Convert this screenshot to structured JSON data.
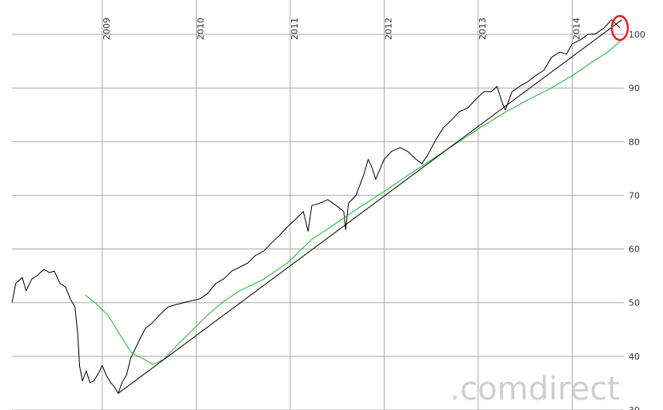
{
  "chart_data": {
    "type": "line",
    "xlim": [
      2008.04,
      2014.55
    ],
    "ylim": [
      30,
      106.4
    ],
    "xticks": [
      2009,
      2010,
      2011,
      2012,
      2013,
      2014
    ],
    "yticks": [
      30,
      40,
      50,
      60,
      70,
      80,
      90,
      100
    ],
    "grid": true,
    "watermark": ".comdirect",
    "series": [
      {
        "color": "#000000",
        "x": [
          2008.04,
          2008.08,
          2008.15,
          2008.19,
          2008.25,
          2008.31,
          2008.38,
          2008.44,
          2008.49,
          2008.55,
          2008.61,
          2008.66,
          2008.71,
          2008.74,
          2008.76,
          2008.79,
          2008.83,
          2008.87,
          2008.91,
          2008.96,
          2009.0,
          2009.04,
          2009.09,
          2009.13,
          2009.17,
          2009.21,
          2009.26,
          2009.3,
          2009.34,
          2009.4,
          2009.46,
          2009.53,
          2009.61,
          2009.7,
          2009.78,
          2009.91,
          2010.04,
          2010.12,
          2010.21,
          2010.29,
          2010.38,
          2010.46,
          2010.55,
          2010.63,
          2010.72,
          2010.8,
          2010.89,
          2010.97,
          2011.06,
          2011.14,
          2011.19,
          2011.23,
          2011.31,
          2011.4,
          2011.49,
          2011.57,
          2011.59,
          2011.62,
          2011.7,
          2011.78,
          2011.83,
          2011.87,
          2011.91,
          2012.0,
          2012.08,
          2012.17,
          2012.25,
          2012.34,
          2012.4,
          2012.46,
          2012.55,
          2012.63,
          2012.72,
          2012.8,
          2012.89,
          2012.97,
          2013.06,
          2013.14,
          2013.2,
          2013.26,
          2013.29,
          2013.36,
          2013.44,
          2013.53,
          2013.61,
          2013.7,
          2013.78,
          2013.87,
          2013.94,
          2014.0,
          2014.09,
          2014.17,
          2014.25,
          2014.34,
          2014.42,
          2014.51
        ],
        "values": [
          50.0,
          53.6,
          54.7,
          52.2,
          54.4,
          55.1,
          56.2,
          55.6,
          55.9,
          53.6,
          52.9,
          50.7,
          49.2,
          44.0,
          38.1,
          35.4,
          37.3,
          35.1,
          35.4,
          36.8,
          38.3,
          36.6,
          35.1,
          34.3,
          33.1,
          35.1,
          36.6,
          39.5,
          41.0,
          43.2,
          45.2,
          46.2,
          47.7,
          49.2,
          49.6,
          50.2,
          50.7,
          51.7,
          53.6,
          54.4,
          55.9,
          56.6,
          57.4,
          58.8,
          59.6,
          61.1,
          62.6,
          64.1,
          65.6,
          67.0,
          63.3,
          68.1,
          68.5,
          69.2,
          68.1,
          67.0,
          63.6,
          68.5,
          70.0,
          73.7,
          76.7,
          75.2,
          73.0,
          76.7,
          78.2,
          78.9,
          78.2,
          76.7,
          75.9,
          77.4,
          80.4,
          82.6,
          84.1,
          85.6,
          86.3,
          87.8,
          89.3,
          89.3,
          90.3,
          87.1,
          85.9,
          89.3,
          90.3,
          91.2,
          92.3,
          93.3,
          95.7,
          96.7,
          96.3,
          98.2,
          99.0,
          100.0,
          100.1,
          101.2,
          102.7,
          101.2
        ]
      },
      {
        "color": "#22b030",
        "x": [
          2008.82,
          2008.93,
          2009.06,
          2009.19,
          2009.31,
          2009.44,
          2009.54,
          2009.66,
          2009.78,
          2009.95,
          2010.12,
          2010.29,
          2010.46,
          2010.72,
          2010.97,
          2011.23,
          2011.49,
          2011.74,
          2012.0,
          2012.25,
          2012.51,
          2012.76,
          2013.02,
          2013.27,
          2013.53,
          2013.78,
          2014.0,
          2014.21,
          2014.38,
          2014.53
        ],
        "values": [
          51.4,
          49.9,
          47.7,
          44.0,
          40.7,
          39.5,
          38.5,
          39.5,
          41.8,
          44.7,
          47.7,
          50.2,
          52.2,
          54.4,
          57.4,
          61.8,
          64.8,
          67.8,
          70.7,
          73.7,
          76.7,
          79.6,
          82.6,
          85.3,
          87.8,
          90.0,
          92.3,
          94.8,
          96.7,
          99.0
        ]
      },
      {
        "color": "#000000",
        "x": [
          2009.17,
          2014.53
        ],
        "values": [
          33.1,
          102.7
        ]
      }
    ]
  }
}
